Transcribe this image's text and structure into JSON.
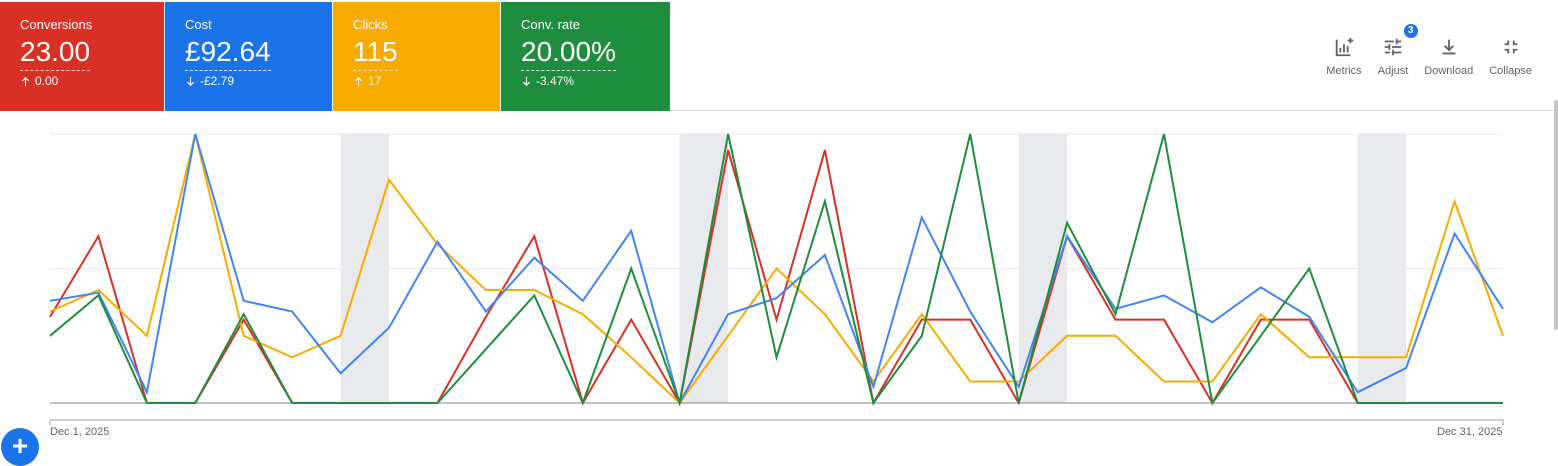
{
  "metrics": [
    {
      "label": "Conversions",
      "value": "23.00",
      "delta": "0.00",
      "direction": "up",
      "color": "#d93025"
    },
    {
      "label": "Cost",
      "value": "£92.64",
      "delta": "-£2.79",
      "direction": "down",
      "color": "#1a73e8"
    },
    {
      "label": "Clicks",
      "value": "115",
      "delta": "17",
      "direction": "up",
      "color": "#f9ab00"
    },
    {
      "label": "Conv. rate",
      "value": "20.00%",
      "delta": "-3.47%",
      "direction": "down",
      "color": "#1e8e3e"
    }
  ],
  "tools": {
    "metrics": "Metrics",
    "adjust": "Adjust",
    "adjust_badge": "3",
    "download": "Download",
    "collapse": "Collapse"
  },
  "chart": {
    "x_start_label": "Dec 1, 2025",
    "x_end_label": "Dec 31, 2025",
    "add_icon": "+"
  },
  "chart_data": {
    "type": "line",
    "x_start": "2025-12-01",
    "x_end": "2025-12-31",
    "ylim": [
      0,
      1
    ],
    "grid": true,
    "highlighted_days": [
      6,
      13,
      20,
      27
    ],
    "series": [
      {
        "color": "#d93025",
        "values": [
          0.32,
          0.62,
          0.0,
          0.0,
          0.31,
          0.0,
          0.0,
          0.0,
          0.0,
          0.32,
          0.62,
          0.0,
          0.31,
          0.0,
          0.94,
          0.31,
          0.94,
          0.0,
          0.31,
          0.31,
          0.0,
          0.62,
          0.31,
          0.31,
          0.0,
          0.31,
          0.31,
          0.0,
          0.0,
          0.0,
          0.0
        ]
      },
      {
        "color": "#4285f4",
        "values": [
          0.38,
          0.41,
          0.04,
          1.0,
          0.38,
          0.34,
          0.11,
          0.28,
          0.6,
          0.34,
          0.54,
          0.38,
          0.64,
          0.0,
          0.33,
          0.39,
          0.55,
          0.06,
          0.69,
          0.34,
          0.06,
          0.62,
          0.35,
          0.4,
          0.3,
          0.43,
          0.32,
          0.04,
          0.13,
          0.63,
          0.35
        ]
      },
      {
        "color": "#f9ab00",
        "values": [
          0.34,
          0.42,
          0.25,
          1.0,
          0.25,
          0.17,
          0.25,
          0.83,
          0.59,
          0.42,
          0.42,
          0.33,
          0.17,
          0.0,
          0.25,
          0.5,
          0.33,
          0.08,
          0.33,
          0.08,
          0.08,
          0.25,
          0.25,
          0.08,
          0.08,
          0.33,
          0.17,
          0.17,
          0.17,
          0.75,
          0.25
        ]
      },
      {
        "color": "#1e8e3e",
        "values": [
          0.25,
          0.4,
          0.0,
          0.0,
          0.33,
          0.0,
          0.0,
          0.0,
          0.0,
          0.2,
          0.4,
          0.0,
          0.5,
          0.0,
          1.0,
          0.17,
          0.75,
          0.0,
          0.25,
          1.0,
          0.0,
          0.67,
          0.33,
          1.0,
          0.0,
          0.25,
          0.5,
          0.0,
          0.0,
          0.0,
          0.0
        ]
      }
    ]
  }
}
